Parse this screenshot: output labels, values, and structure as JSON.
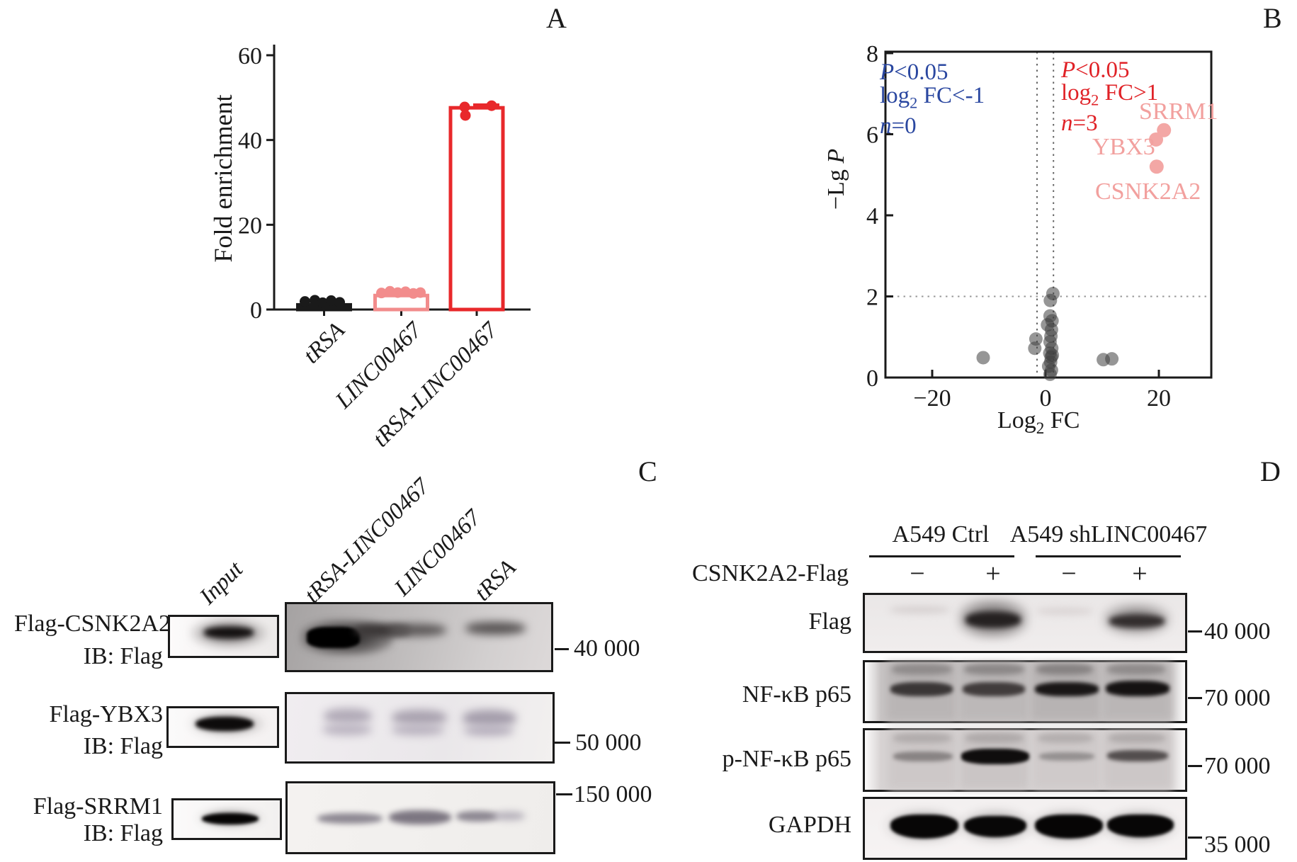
{
  "panels": {
    "a_letter": "A",
    "b_letter": "B",
    "c_letter": "C",
    "d_letter": "D"
  },
  "chart_data": [
    {
      "id": "panel-a-bar",
      "type": "bar",
      "ylabel": "Fold enrichment",
      "ylim": [
        0,
        60
      ],
      "yticks": [
        0,
        20,
        40,
        60
      ],
      "categories": [
        "tRSA",
        "LINC00467",
        "tRSA-LINC00467"
      ],
      "values": [
        1.1,
        3.3,
        47.6
      ],
      "bar_colors": [
        "#1a1a1a",
        "#f28c8c",
        "#e8282b"
      ],
      "points": [
        [
          [
            -27,
            1.9
          ],
          [
            -13,
            2.2
          ],
          [
            -2,
            1.6
          ],
          [
            10,
            2.1
          ],
          [
            22,
            1.7
          ]
        ],
        [
          [
            -28,
            3.9
          ],
          [
            -16,
            4.3
          ],
          [
            -5,
            4.0
          ],
          [
            6,
            4.2
          ],
          [
            17,
            3.8
          ],
          [
            27,
            4.0
          ]
        ],
        [
          [
            -17,
            47.8
          ],
          [
            -16,
            45.8
          ],
          [
            21,
            48.1
          ]
        ]
      ]
    },
    {
      "id": "panel-b-volcano",
      "type": "scatter",
      "xlabel_parts": {
        "main": "Log",
        "sub": "2",
        "rest": " FC"
      },
      "ylabel_parts": {
        "pre": "−Lg ",
        "italic": "P"
      },
      "xlim": [
        -28.2,
        29.2
      ],
      "ylim": [
        0,
        8
      ],
      "xticks": [
        -20,
        0,
        20
      ],
      "xtick_labels": [
        "−20",
        "0",
        "20"
      ],
      "yticks": [
        0,
        2,
        4,
        6,
        8
      ],
      "threshold_hline": 2,
      "threshold_vlines": [
        -1.5,
        1.4
      ],
      "gray_points": [
        [
          -11,
          0.49
        ],
        [
          10.2,
          0.44
        ],
        [
          11.7,
          0.46
        ],
        [
          1.3,
          2.07
        ],
        [
          0.85,
          1.9
        ],
        [
          0.8,
          1.52
        ],
        [
          1.15,
          1.4
        ],
        [
          0.35,
          1.3
        ],
        [
          1.05,
          1.18
        ],
        [
          -1.7,
          0.95
        ],
        [
          0.95,
          1.02
        ],
        [
          0.8,
          0.88
        ],
        [
          1.1,
          0.72
        ],
        [
          0.75,
          0.6
        ],
        [
          1.0,
          0.5
        ],
        [
          -1.9,
          0.72
        ],
        [
          0.9,
          0.38
        ],
        [
          0.55,
          0.28
        ],
        [
          1.05,
          0.18
        ],
        [
          0.8,
          0.08
        ],
        [
          1.2,
          0.55
        ]
      ],
      "pink_points": [
        {
          "label": "SRRM1",
          "x": 20.9,
          "y": 6.1
        },
        {
          "label": "YBX3",
          "x": 19.5,
          "y": 5.87
        },
        {
          "label": "CSNK2A2",
          "x": 19.6,
          "y": 5.2
        }
      ],
      "colors": {
        "gray": "#3f3f3f",
        "pink": "#f3a7a5",
        "pink_label": "#f2a09e",
        "blue_text": "#2a47a0",
        "red_text": "#e02227"
      },
      "annotation_left": {
        "l1_italic": "P",
        "l1_rest": "<0.05",
        "l2_main": "log",
        "l2_sub": "2",
        "l2_rest": " FC<-1",
        "l3_italic": "n",
        "l3_rest": "=0"
      },
      "annotation_right": {
        "l1_italic": "P",
        "l1_rest": "<0.05",
        "l2_main": "log",
        "l2_sub": "2",
        "l2_rest": " FC>1",
        "l3_italic": "n",
        "l3_rest": "=3"
      }
    }
  ],
  "panel_c": {
    "rows": [
      {
        "label": "Flag-CSNK2A2",
        "ib": "IB: Flag",
        "mw": "40 000"
      },
      {
        "label": "Flag-YBX3",
        "ib": "IB: Flag",
        "mw": "50 000"
      },
      {
        "label": "Flag-SRRM1",
        "ib": "IB: Flag",
        "mw": "150 000"
      }
    ],
    "lanes": [
      "Input",
      "tRSA-LINC00467",
      "LINC00467",
      "tRSA"
    ]
  },
  "panel_d": {
    "groups": [
      "A549 Ctrl",
      "A549 shLINC00467"
    ],
    "condition_label": "CSNK2A2-Flag",
    "condition_signs": [
      "−",
      "+",
      "−",
      "+"
    ],
    "rows": [
      {
        "label": "Flag",
        "mw": "40 000"
      },
      {
        "label": "NF-κB p65",
        "mw": "70 000"
      },
      {
        "label": "p-NF-κB p65",
        "mw": "70 000"
      },
      {
        "label": "GAPDH",
        "mw": "35 000"
      }
    ]
  }
}
